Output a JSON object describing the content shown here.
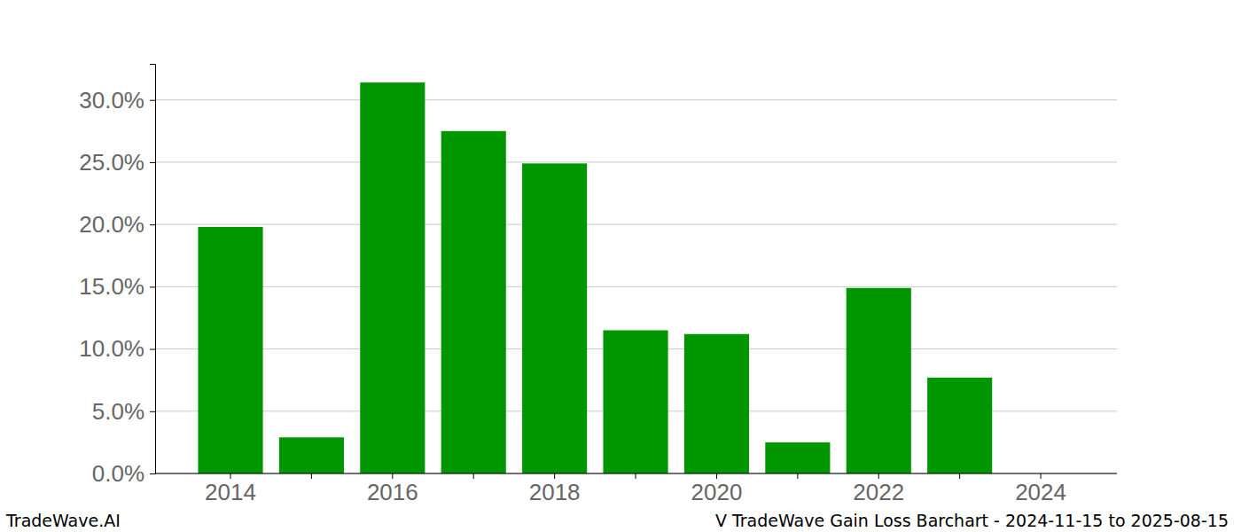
{
  "chart_data": {
    "type": "bar",
    "title": "V TradeWave Gain Loss Barchart - 2024-11-15 to 2025-08-15",
    "annotations": [
      "TradeWave.AI"
    ],
    "categories": [
      "2014",
      null,
      "2016",
      null,
      "2018",
      null,
      "2020",
      null,
      "2022",
      null,
      "2024"
    ],
    "values": [
      19.8,
      2.9,
      31.4,
      27.5,
      24.9,
      11.5,
      11.2,
      2.5,
      14.9,
      7.7,
      0
    ],
    "color": "#009600",
    "ylim": [
      0,
      32.9
    ],
    "yticks": [
      {
        "value": 0,
        "label": "0.0%"
      },
      {
        "value": 5,
        "label": "5.0%"
      },
      {
        "value": 10,
        "label": "10.0%"
      },
      {
        "value": 15,
        "label": "15.0%"
      },
      {
        "value": 20,
        "label": "20.0%"
      },
      {
        "value": 25,
        "label": "25.0%"
      },
      {
        "value": 30,
        "label": "30.0%"
      }
    ],
    "grid": true
  }
}
